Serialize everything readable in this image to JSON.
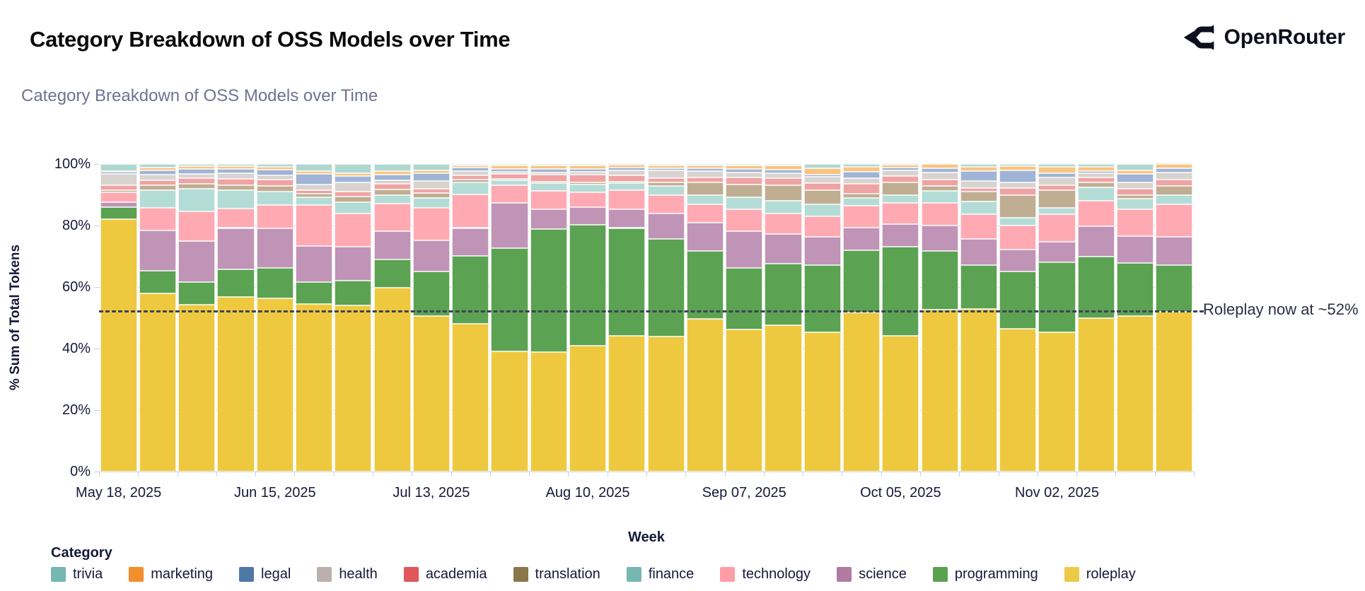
{
  "header": {
    "title": "Category Breakdown of OSS Models over Time",
    "brand": {
      "name": "OpenRouter"
    }
  },
  "chart": {
    "subtitle": "Category Breakdown of OSS Models over Time",
    "y_axis": {
      "title": "% Sum of Total Tokens",
      "ticks": [
        {
          "label": "0%",
          "value": 0
        },
        {
          "label": "20%",
          "value": 20
        },
        {
          "label": "40%",
          "value": 40
        },
        {
          "label": "60%",
          "value": 60
        },
        {
          "label": "80%",
          "value": 80
        },
        {
          "label": "100%",
          "value": 100
        }
      ]
    },
    "x_axis": {
      "title": "Week",
      "tick_labels": [
        {
          "label": "May 18, 2025",
          "bar_index": 0
        },
        {
          "label": "Jun 15, 2025",
          "bar_index": 4
        },
        {
          "label": "Jul 13, 2025",
          "bar_index": 8
        },
        {
          "label": "Aug 10, 2025",
          "bar_index": 12
        },
        {
          "label": "Sep 07, 2025",
          "bar_index": 16
        },
        {
          "label": "Oct 05, 2025",
          "bar_index": 20
        },
        {
          "label": "Nov 02, 2025",
          "bar_index": 24
        }
      ]
    },
    "annotation": {
      "text": "Roleplay now at ~52%",
      "y_value_pct": 52.5
    },
    "legend": {
      "title": "Category"
    }
  },
  "colors": {
    "title_text": "#0a0a0c",
    "subtitle_text": "#6e7491",
    "axis_text": "#16193a",
    "reference_line": "#3d4357",
    "annotation_text": "#2a2f45"
  },
  "chart_data": {
    "type": "bar",
    "stacked": true,
    "unit": "percent",
    "title": "Category Breakdown of OSS Models over Time",
    "xlabel": "Week",
    "ylabel": "% Sum of Total Tokens",
    "ylim": [
      0,
      100
    ],
    "legend_position": "bottom",
    "reference_line": {
      "y": 52.5,
      "style": "dashed",
      "label": "Roleplay now at ~52%"
    },
    "x": [
      "May 18, 2025",
      "May 25, 2025",
      "Jun 01, 2025",
      "Jun 08, 2025",
      "Jun 15, 2025",
      "Jun 22, 2025",
      "Jun 29, 2025",
      "Jul 06, 2025",
      "Jul 13, 2025",
      "Jul 20, 2025",
      "Jul 27, 2025",
      "Aug 03, 2025",
      "Aug 10, 2025",
      "Aug 17, 2025",
      "Aug 24, 2025",
      "Aug 31, 2025",
      "Sep 07, 2025",
      "Sep 14, 2025",
      "Sep 21, 2025",
      "Sep 28, 2025",
      "Oct 05, 2025",
      "Oct 12, 2025",
      "Oct 19, 2025",
      "Oct 26, 2025",
      "Nov 02, 2025",
      "Nov 09, 2025",
      "Nov 16, 2025",
      "Nov 23, 2025"
    ],
    "stack_order_note": "series listed bottom-to-top of the stack",
    "series": [
      {
        "name": "roleplay",
        "legend_color": "#edc948",
        "bar_color": "#eec93f",
        "values": [
          82,
          58,
          54.3,
          56.7,
          56.3,
          54.5,
          54,
          59.7,
          50,
          48,
          39,
          38.8,
          40.9,
          44.1,
          43.8,
          49.6,
          46.1,
          47.6,
          45.3,
          51.8,
          44.2,
          52.6,
          52.9,
          46.4,
          45.4,
          50,
          50.5,
          52
        ]
      },
      {
        "name": "programming",
        "legend_color": "#59a14f",
        "bar_color": "#5ba352",
        "values": [
          4,
          7.3,
          7.3,
          9.1,
          9.9,
          7.1,
          8,
          9.2,
          14.5,
          22.1,
          33.6,
          40,
          39.4,
          35.1,
          31.8,
          22.1,
          20,
          20,
          21.9,
          20.1,
          29,
          19.2,
          14.3,
          18.6,
          22.7,
          19.9,
          17.4,
          15.1
        ]
      },
      {
        "name": "science",
        "legend_color": "#b07aa1",
        "bar_color": "#c094b6",
        "values": [
          1.7,
          13,
          13.3,
          13.4,
          12.8,
          11.8,
          11,
          9.2,
          10,
          9.1,
          14.8,
          6.6,
          5.7,
          6.1,
          8.3,
          9.3,
          12,
          9.6,
          9.2,
          7.5,
          7.3,
          8.3,
          8.4,
          7.1,
          6.7,
          9.8,
          8.6,
          9.2
        ]
      },
      {
        "name": "technology",
        "legend_color": "#ff9da7",
        "bar_color": "#ffaab3",
        "values": [
          3,
          7.5,
          9.6,
          6.3,
          7.6,
          13.2,
          11,
          9.1,
          10.5,
          11,
          5.7,
          5.9,
          4.7,
          6.1,
          5.9,
          6,
          7.2,
          6.8,
          6.7,
          7.1,
          6.8,
          7.3,
          8,
          8,
          8.8,
          8.4,
          8.8,
          10.7
        ]
      },
      {
        "name": "finance",
        "legend_color": "#76b7b2",
        "bar_color": "#b4dcd6",
        "values": [
          0.2,
          5.7,
          7.5,
          6.1,
          4.4,
          2.5,
          3.5,
          2.8,
          3.1,
          3.9,
          1.6,
          2.4,
          2.7,
          2.3,
          3,
          2.8,
          3.9,
          4.1,
          3.9,
          2.4,
          2.5,
          3.8,
          4.2,
          2.5,
          2.2,
          4.4,
          3.4,
          2.9
        ]
      },
      {
        "name": "translation",
        "legend_color": "#8a784a",
        "bar_color": "#c0ae92",
        "values": [
          0.7,
          1.6,
          1.5,
          1.6,
          1.8,
          1.2,
          2,
          1.8,
          1.5,
          0.8,
          0.5,
          0.6,
          0.7,
          0.6,
          1.3,
          4.3,
          4.2,
          5.1,
          4.4,
          1.5,
          4.3,
          1.7,
          3.3,
          7.3,
          5.8,
          1.6,
          1.3,
          3
        ]
      },
      {
        "name": "academia",
        "legend_color": "#e15759",
        "bar_color": "#efa3a3",
        "values": [
          1.4,
          1.6,
          2,
          2,
          2.1,
          1.2,
          1.5,
          1.8,
          1.5,
          1.5,
          1.5,
          2.2,
          2.5,
          2,
          1.4,
          1.6,
          2.3,
          2.2,
          2.3,
          3.1,
          2,
          2,
          1.2,
          2.3,
          1.5,
          1.6,
          2,
          2
        ]
      },
      {
        "name": "health",
        "legend_color": "#bab0ac",
        "bar_color": "#d9d3cf",
        "values": [
          3.8,
          1.8,
          1.4,
          1.8,
          1.4,
          1.9,
          3,
          1.2,
          2.4,
          1.2,
          0.8,
          0.7,
          0.8,
          1.7,
          2.5,
          2.1,
          1.5,
          1.6,
          2.2,
          2,
          1.9,
          2.3,
          2.2,
          1.9,
          2.5,
          1.3,
          2.1,
          2.3
        ]
      },
      {
        "name": "legal",
        "legend_color": "#4e79a7",
        "bar_color": "#9fb4d6",
        "values": [
          0.7,
          1.4,
          1.4,
          1.4,
          1.8,
          3.5,
          2,
          1.8,
          2.5,
          1.2,
          1,
          1.2,
          1.1,
          0.9,
          0.7,
          0.8,
          1.3,
          1.1,
          0.6,
          2,
          0.8,
          1.4,
          3.2,
          3.9,
          1.5,
          0.8,
          2.6,
          1.4
        ]
      },
      {
        "name": "marketing",
        "legend_color": "#f28e2b",
        "bar_color": "#f9c480",
        "values": [
          0.1,
          1,
          1,
          0.9,
          1,
          0.9,
          1,
          1,
          1,
          0.8,
          1,
          1.1,
          1,
          0.8,
          0.8,
          1,
          1,
          1.4,
          2.2,
          1.5,
          1,
          1.4,
          1.3,
          1.3,
          1.9,
          1.2,
          1.3,
          1.3
        ]
      },
      {
        "name": "trivia",
        "legend_color": "#76b7b2",
        "bar_color": "#aed7d0",
        "values": [
          2.4,
          1.1,
          0.7,
          0.7,
          0.9,
          2.2,
          3,
          2.4,
          2,
          0.4,
          0.5,
          0.5,
          0.5,
          0.3,
          0.5,
          0.4,
          0.5,
          0.5,
          1.3,
          1,
          0.2,
          0,
          1,
          0.7,
          1,
          1,
          2,
          0.1
        ]
      }
    ]
  }
}
